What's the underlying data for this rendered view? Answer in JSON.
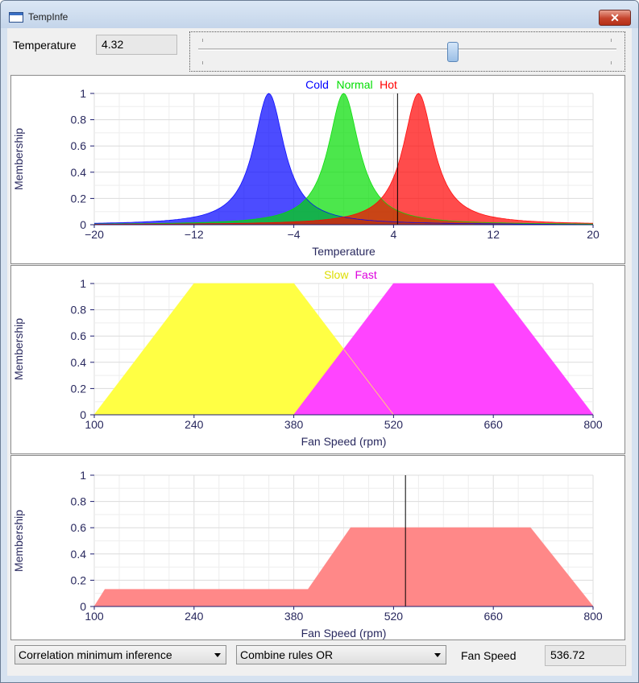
{
  "window": {
    "title": "TempInfe",
    "close_glyph": "✕"
  },
  "input": {
    "label": "Temperature",
    "value": "4.32",
    "slider_fraction": 0.608
  },
  "output": {
    "label": "Fan Speed",
    "value": "536.72"
  },
  "dropdowns": {
    "inference_method": "Correlation minimum inference",
    "combine_method": "Combine rules OR"
  },
  "colors": {
    "cold": "#0000ff",
    "normal": "#00dd00",
    "hot": "#ff0000",
    "slow": "#dddd00",
    "fast": "#dd00dd",
    "result": "#ff7777"
  },
  "chart_data": [
    {
      "type": "area",
      "xlabel": "Temperature",
      "ylabel": "Membership",
      "xlim": [
        -20,
        20
      ],
      "ylim": [
        0,
        1
      ],
      "xticks": [
        -20,
        -12,
        -4,
        4,
        12,
        20
      ],
      "xtick_labels": [
        "−20",
        "−12",
        "−4",
        "4",
        "12",
        "20"
      ],
      "yticks": [
        0,
        0.2,
        0.4,
        0.6,
        0.8,
        1
      ],
      "marker_x": 4.32,
      "series": [
        {
          "name": "Cold",
          "shape": "bell",
          "center": -6,
          "width": 1.5,
          "color": "#0000ff"
        },
        {
          "name": "Normal",
          "shape": "bell",
          "center": 0,
          "width": 1.5,
          "color": "#00dd00"
        },
        {
          "name": "Hot",
          "shape": "bell",
          "center": 6,
          "width": 1.5,
          "color": "#ff0000"
        }
      ]
    },
    {
      "type": "area",
      "xlabel": "Fan Speed (rpm)",
      "ylabel": "Membership",
      "xlim": [
        100,
        800
      ],
      "ylim": [
        0,
        1
      ],
      "xticks": [
        100,
        240,
        380,
        520,
        660,
        800
      ],
      "xtick_labels": [
        "100",
        "240",
        "380",
        "520",
        "660",
        "800"
      ],
      "yticks": [
        0,
        0.2,
        0.4,
        0.6,
        0.8,
        1
      ],
      "series": [
        {
          "name": "Slow",
          "shape": "trapezoid",
          "points": [
            [
              100,
              0
            ],
            [
              240,
              1
            ],
            [
              380,
              1
            ],
            [
              520,
              0
            ]
          ],
          "color": "#ffff44"
        },
        {
          "name": "Fast",
          "shape": "trapezoid",
          "points": [
            [
              380,
              0
            ],
            [
              520,
              1
            ],
            [
              660,
              1
            ],
            [
              800,
              0
            ]
          ],
          "color": "#ff44ff"
        }
      ]
    },
    {
      "type": "area",
      "xlabel": "Fan Speed (rpm)",
      "ylabel": "Membership",
      "xlim": [
        100,
        800
      ],
      "ylim": [
        0,
        1
      ],
      "xticks": [
        100,
        240,
        380,
        520,
        660,
        800
      ],
      "xtick_labels": [
        "100",
        "240",
        "380",
        "520",
        "660",
        "800"
      ],
      "yticks": [
        0,
        0.2,
        0.4,
        0.6,
        0.8,
        1
      ],
      "marker_x": 536.72,
      "series": [
        {
          "name": "",
          "shape": "polygon",
          "points": [
            [
              100,
              0
            ],
            [
              115,
              0.13
            ],
            [
              400,
              0.13
            ],
            [
              460,
              0.6
            ],
            [
              712,
              0.6
            ],
            [
              800,
              0
            ]
          ],
          "color": "#ff8888"
        }
      ]
    }
  ]
}
